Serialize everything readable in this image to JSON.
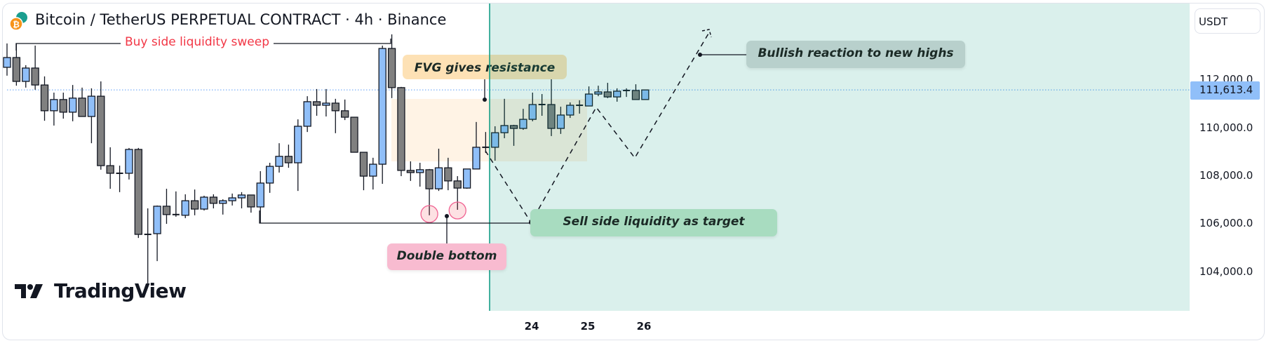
{
  "header": {
    "title": "Bitcoin / TetherUS PERPETUAL CONTRACT · 4h · Binance"
  },
  "price_axis": {
    "currency": "USDT",
    "ticks": [
      "112,000.0",
      "110,000.0",
      "108,000.0",
      "106,000.0",
      "104,000.0"
    ],
    "last_price": "111,613.4"
  },
  "time_axis": {
    "labels": [
      "24",
      "25",
      "26"
    ]
  },
  "annotations": {
    "buy_side": "Buy side liquidity sweep",
    "fvg": "FVG gives resistance",
    "double_bottom": "Double bottom",
    "sell_side": "Sell side liquidity as target",
    "bullish": "Bullish reaction to new highs"
  },
  "branding": {
    "logo": "TradingView"
  },
  "colors": {
    "up": "#90bff9",
    "down": "#808080",
    "accent": "#089981",
    "buy_side": "#f23645"
  },
  "chart_data": {
    "type": "candlestick",
    "title": "Bitcoin / TetherUS PERPETUAL CONTRACT · 4h · Binance",
    "ylabel": "USDT",
    "ylim": [
      102300,
      115000
    ],
    "yticks": [
      104000,
      106000,
      108000,
      110000,
      112000
    ],
    "last_price": 111613.4,
    "date_ticks": [
      {
        "index": 56,
        "label": "24"
      },
      {
        "index": 62,
        "label": "25"
      },
      {
        "index": 68,
        "label": "26"
      }
    ],
    "candles": [
      [
        112560,
        113560,
        112210,
        112970
      ],
      [
        112970,
        113560,
        111790,
        111970
      ],
      [
        111970,
        112650,
        111710,
        112530
      ],
      [
        112530,
        113470,
        111620,
        111820
      ],
      [
        111820,
        112180,
        110320,
        110740
      ],
      [
        110740,
        111500,
        110120,
        111210
      ],
      [
        111210,
        111500,
        110410,
        110680
      ],
      [
        110680,
        111820,
        110300,
        111270
      ],
      [
        111270,
        111710,
        110500,
        110500
      ],
      [
        110500,
        111680,
        109380,
        111350
      ],
      [
        111350,
        111970,
        108270,
        108440
      ],
      [
        108440,
        109210,
        107470,
        108120
      ],
      [
        108120,
        108440,
        107330,
        108110
      ],
      [
        108120,
        109180,
        107860,
        109120
      ],
      [
        109120,
        109180,
        105410,
        105560
      ],
      [
        105560,
        106650,
        103470,
        105550
      ],
      [
        105590,
        106770,
        104440,
        106740
      ],
      [
        106740,
        107470,
        106000,
        106390
      ],
      [
        106390,
        107360,
        106300,
        106370
      ],
      [
        106360,
        107240,
        106240,
        106970
      ],
      [
        106970,
        107440,
        106360,
        106620
      ],
      [
        106620,
        107180,
        106560,
        107120
      ],
      [
        107120,
        107240,
        106650,
        106860
      ],
      [
        106860,
        107030,
        106390,
        106970
      ],
      [
        106970,
        107270,
        106770,
        107090
      ],
      [
        107090,
        107330,
        106650,
        107210
      ],
      [
        107210,
        107210,
        106470,
        106710
      ],
      [
        106710,
        108210,
        106030,
        107710
      ],
      [
        107710,
        108560,
        107300,
        108410
      ],
      [
        108410,
        109380,
        108150,
        108830
      ],
      [
        108830,
        109320,
        108350,
        108560
      ],
      [
        108560,
        110380,
        107380,
        110090
      ],
      [
        110090,
        111350,
        109850,
        111120
      ],
      [
        111120,
        111650,
        110530,
        110970
      ],
      [
        110970,
        111650,
        110500,
        111060
      ],
      [
        111060,
        111240,
        109800,
        110740
      ],
      [
        110740,
        111210,
        110350,
        110470
      ],
      [
        110470,
        110470,
        109000,
        109000
      ],
      [
        109000,
        109000,
        107410,
        108000
      ],
      [
        108000,
        108770,
        107440,
        108500
      ],
      [
        108500,
        113470,
        107680,
        113350
      ],
      [
        113350,
        113940,
        111270,
        111710
      ],
      [
        111710,
        111740,
        108000,
        108240
      ],
      [
        108240,
        108620,
        107800,
        108150
      ],
      [
        108150,
        108560,
        107560,
        108270
      ],
      [
        108270,
        108300,
        106360,
        107470
      ],
      [
        107470,
        109150,
        107380,
        108350
      ],
      [
        108350,
        108770,
        107410,
        107800
      ],
      [
        107800,
        108000,
        106590,
        107500
      ],
      [
        107500,
        108300,
        107470,
        108300
      ],
      [
        108300,
        110270,
        108300,
        109210
      ],
      [
        109210,
        109850,
        108970,
        109200
      ],
      [
        109210,
        110090,
        108650,
        109820
      ],
      [
        109820,
        111240,
        109590,
        110120
      ],
      [
        110120,
        110150,
        109270,
        110000
      ],
      [
        110000,
        110820,
        109940,
        110380
      ],
      [
        110380,
        111500,
        110300,
        111000
      ],
      [
        111000,
        111440,
        110530,
        110990
      ],
      [
        111000,
        112090,
        109680,
        110000
      ],
      [
        110000,
        110910,
        109770,
        110560
      ],
      [
        110560,
        111090,
        110440,
        110970
      ],
      [
        110970,
        111180,
        110620,
        110960
      ],
      [
        110940,
        111760,
        110940,
        111440
      ],
      [
        111440,
        111790,
        111350,
        111530
      ],
      [
        111530,
        111910,
        111270,
        111320
      ],
      [
        111320,
        111680,
        111120,
        111560
      ],
      [
        111590,
        111680,
        111320,
        111580
      ],
      [
        111590,
        111850,
        111210,
        111210
      ],
      [
        111210,
        111620,
        111210,
        111613.4
      ]
    ]
  }
}
